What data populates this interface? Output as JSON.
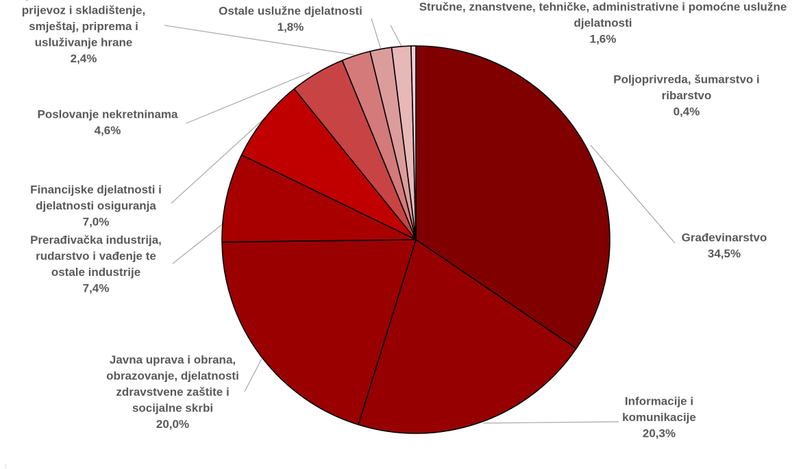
{
  "chart_data": {
    "type": "pie",
    "title": "",
    "slices": [
      {
        "label": [
          "Građevinarstvo"
        ],
        "value_label": "34,5%",
        "value": 34.5,
        "color": "#800000"
      },
      {
        "label": [
          "Informacije i",
          "komunikacije"
        ],
        "value_label": "20,3%",
        "value": 20.3,
        "color": "#960000"
      },
      {
        "label": [
          "Javna uprava i obrana,",
          "obrazovanje, djelatnosti",
          "zdravstvene zaštite i",
          "socijalne skrbi"
        ],
        "value_label": "20,0%",
        "value": 20.0,
        "color": "#9b0000"
      },
      {
        "label": [
          "Prerađivačka industrija,",
          "rudarstvo i vađenje te",
          "ostale industrije"
        ],
        "value_label": "7,4%",
        "value": 7.4,
        "color": "#a80000"
      },
      {
        "label": [
          "Financijske djelatnosti i",
          "djelatnosti osiguranja"
        ],
        "value_label": "7,0%",
        "value": 7.0,
        "color": "#c00000"
      },
      {
        "label": [
          "Poslovanje nekretninama"
        ],
        "value_label": "4,6%",
        "value": 4.6,
        "color": "#c84444"
      },
      {
        "label": [
          "Trgovina na veliko i malo,",
          "prijevoz i skladištenje,",
          "smještaj, priprema i",
          "usluživanje hrane"
        ],
        "value_label": "2,4%",
        "value": 2.4,
        "color": "#d47a7a"
      },
      {
        "label": [
          "Ostale uslužne djelatnosti"
        ],
        "value_label": "1,8%",
        "value": 1.8,
        "color": "#dc9c9c"
      },
      {
        "label": [
          "Stručne, znanstvene, tehničke, administrativne i pomoćne uslužne",
          "djelatnosti"
        ],
        "value_label": "1,6%",
        "value": 1.6,
        "color": "#e8b8b8"
      },
      {
        "label": [
          "Poljoprivreda, šumarstvo i",
          "ribarstvo"
        ],
        "value_label": "0,4%",
        "value": 0.4,
        "color": "#f0d0d0"
      }
    ],
    "start_angle": "12 o'clock",
    "direction": "clockwise",
    "legend": "none (data labels with leader lines)"
  }
}
